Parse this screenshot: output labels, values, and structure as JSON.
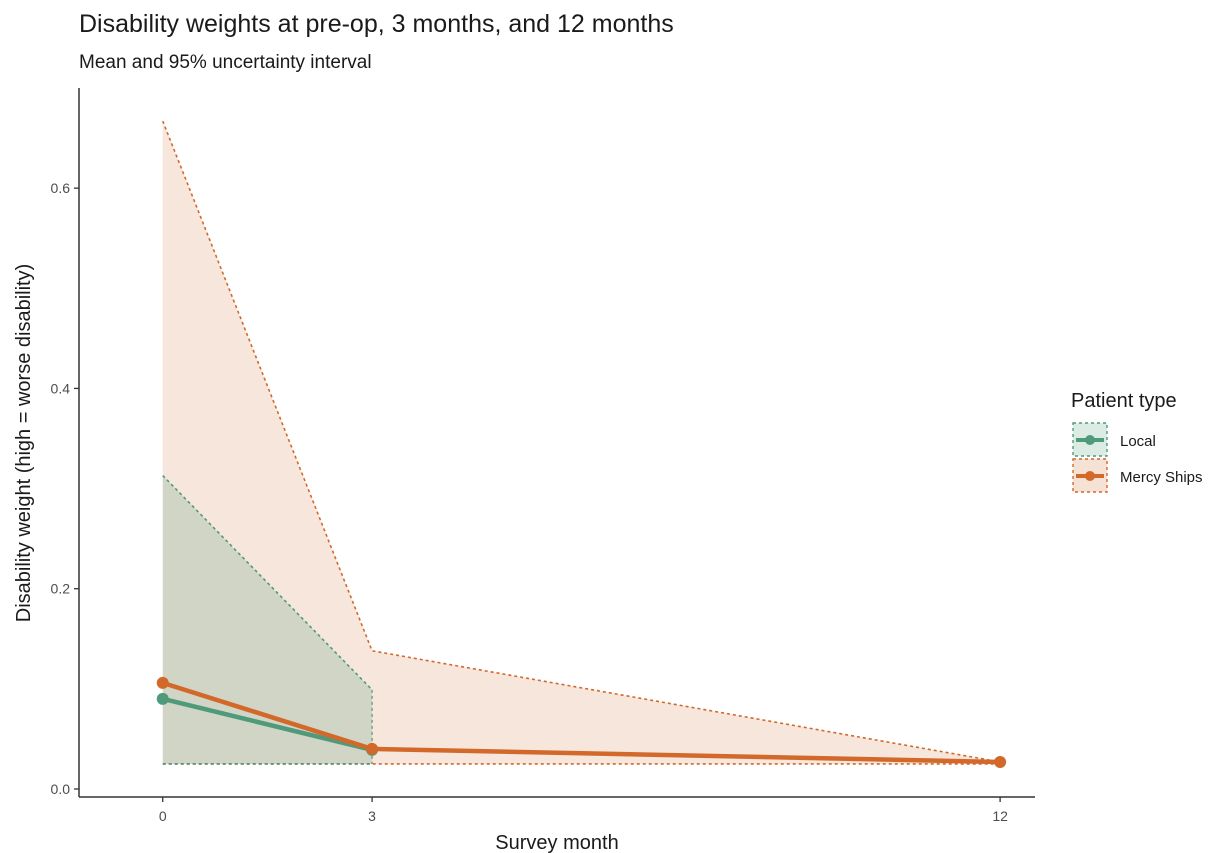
{
  "chart_data": {
    "type": "line",
    "title": "Disability weights at pre-op, 3 months, and 12 months",
    "subtitle": "Mean and 95% uncertainty interval",
    "xlabel": "Survey month",
    "ylabel": "Disability weight (high = worse disability)",
    "x_ticks": [
      "0",
      "3",
      "12"
    ],
    "y_ticks": [
      "0.0",
      "0.2",
      "0.4",
      "0.6"
    ],
    "xlim": [
      -1.2,
      12.5
    ],
    "ylim": [
      -0.008,
      0.7
    ],
    "grid": false,
    "legend_position": "right",
    "legend_title": "Patient type",
    "series": [
      {
        "name": "Local",
        "color": "#4f9a7a",
        "x": [
          0,
          3
        ],
        "y": [
          0.09,
          0.039
        ],
        "lower": [
          0.025,
          0.025
        ],
        "upper": [
          0.313,
          0.099
        ]
      },
      {
        "name": "Mercy Ships",
        "color": "#d2692b",
        "x": [
          0,
          3,
          12
        ],
        "y": [
          0.106,
          0.04,
          0.027
        ],
        "lower": [
          0.025,
          0.025,
          0.025
        ],
        "upper": [
          0.667,
          0.138,
          0.027
        ]
      }
    ]
  }
}
